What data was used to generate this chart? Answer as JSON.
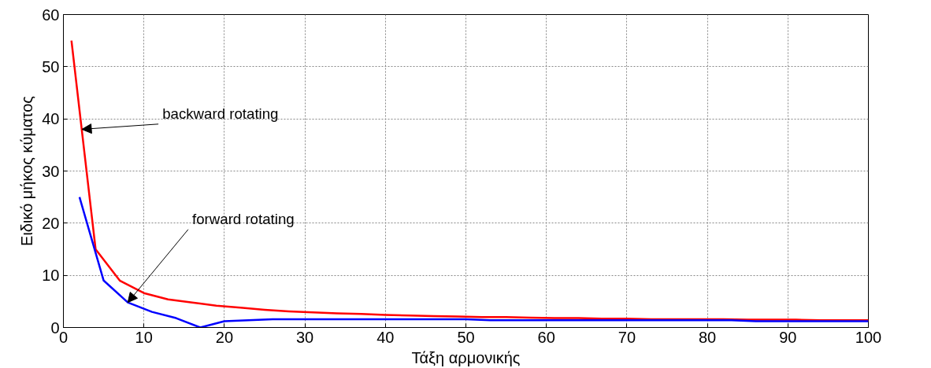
{
  "chart_data": {
    "type": "line",
    "xlabel": "Τάξη αρμονικής",
    "ylabel": "Ειδικό μήκος κύματος",
    "xlim": [
      0,
      100
    ],
    "ylim": [
      0,
      60
    ],
    "xticks": [
      0,
      10,
      20,
      30,
      40,
      50,
      60,
      70,
      80,
      90,
      100
    ],
    "yticks": [
      0,
      10,
      20,
      30,
      40,
      50,
      60
    ],
    "grid": true,
    "line_style": "solid",
    "series": [
      {
        "color": "#ff0000",
        "x": [
          1,
          4,
          7,
          10,
          13,
          16,
          19,
          22,
          25,
          28,
          31,
          34,
          37,
          40,
          43,
          46,
          49,
          52,
          55,
          58,
          61,
          64,
          67,
          70,
          73,
          76,
          79,
          82,
          85,
          88,
          91,
          94,
          97,
          100
        ],
        "values": [
          55,
          15,
          9,
          6.6,
          5.4,
          4.8,
          4.2,
          3.8,
          3.4,
          3.1,
          2.9,
          2.7,
          2.6,
          2.4,
          2.3,
          2.2,
          2.1,
          2.0,
          2.0,
          1.9,
          1.8,
          1.8,
          1.7,
          1.7,
          1.6,
          1.6,
          1.6,
          1.6,
          1.5,
          1.5,
          1.5,
          1.4,
          1.4,
          1.4
        ]
      },
      {
        "color": "#0000ff",
        "x": [
          2,
          5,
          8,
          11,
          14,
          17,
          20,
          23,
          26,
          29,
          32,
          35,
          38,
          41,
          44,
          47,
          50,
          53,
          56,
          59,
          62,
          65,
          68,
          71,
          74,
          77,
          80,
          83,
          86,
          89,
          92,
          95,
          98,
          100
        ],
        "values": [
          25,
          9,
          4.8,
          3.0,
          1.8,
          0,
          1.2,
          1.4,
          1.6,
          1.6,
          1.6,
          1.6,
          1.6,
          1.6,
          1.6,
          1.6,
          1.6,
          1.4,
          1.4,
          1.4,
          1.4,
          1.4,
          1.4,
          1.4,
          1.4,
          1.4,
          1.4,
          1.4,
          1.2,
          1.2,
          1.2,
          1.2,
          1.2,
          1.2
        ]
      }
    ],
    "annotations": [
      {
        "text": "backward rotating",
        "x": 2.3,
        "y": 38
      },
      {
        "text": "forward rotating",
        "x": 8,
        "y": 4.8
      }
    ]
  }
}
